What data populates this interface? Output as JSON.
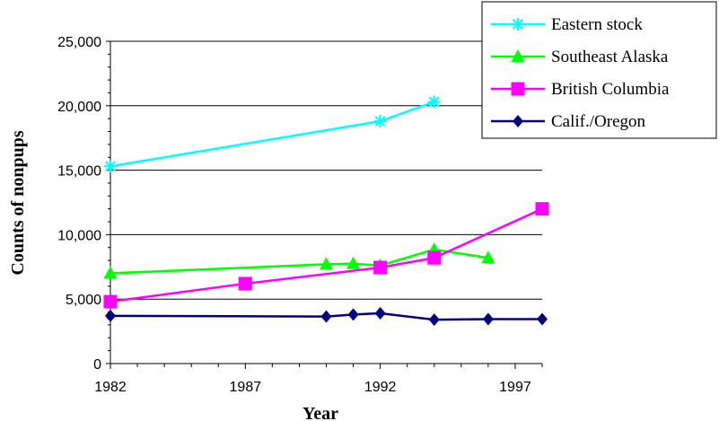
{
  "chart_data": {
    "type": "line",
    "xlabel": "Year",
    "ylabel": "Counts of nonpups",
    "xlim": [
      1982,
      1998
    ],
    "ylim": [
      0,
      25000
    ],
    "x_ticks": [
      1982,
      1987,
      1992,
      1997
    ],
    "y_ticks": [
      0,
      5000,
      10000,
      15000,
      20000,
      25000
    ],
    "x_tick_labels": [
      "1982",
      "1987",
      "1992",
      "1997"
    ],
    "y_tick_labels": [
      "0",
      "5,000",
      "10,000",
      "15,000",
      "20,000",
      "25,000"
    ],
    "grid": "horizontal",
    "legend_position": "top-right",
    "series": [
      {
        "name": "Eastern stock",
        "color": "#00FFFF",
        "marker": "asterisk",
        "x": [
          1982,
          1992,
          1994
        ],
        "y": [
          15300,
          18800,
          20300
        ]
      },
      {
        "name": "Southeast Alaska",
        "color": "#00FF00",
        "marker": "triangle",
        "x": [
          1982,
          1990,
          1991,
          1992,
          1994,
          1996
        ],
        "y": [
          7000,
          7700,
          7750,
          7600,
          8850,
          8200
        ]
      },
      {
        "name": "British Columbia",
        "color": "#FF00FF",
        "marker": "square",
        "x": [
          1982,
          1987,
          1992,
          1994,
          1998
        ],
        "y": [
          4800,
          6200,
          7450,
          8200,
          12000
        ]
      },
      {
        "name": "Calif./Oregon",
        "color": "#000080",
        "marker": "diamond",
        "x": [
          1982,
          1990,
          1991,
          1992,
          1994,
          1996,
          1998
        ],
        "y": [
          3700,
          3650,
          3800,
          3900,
          3400,
          3450,
          3450
        ]
      }
    ]
  }
}
